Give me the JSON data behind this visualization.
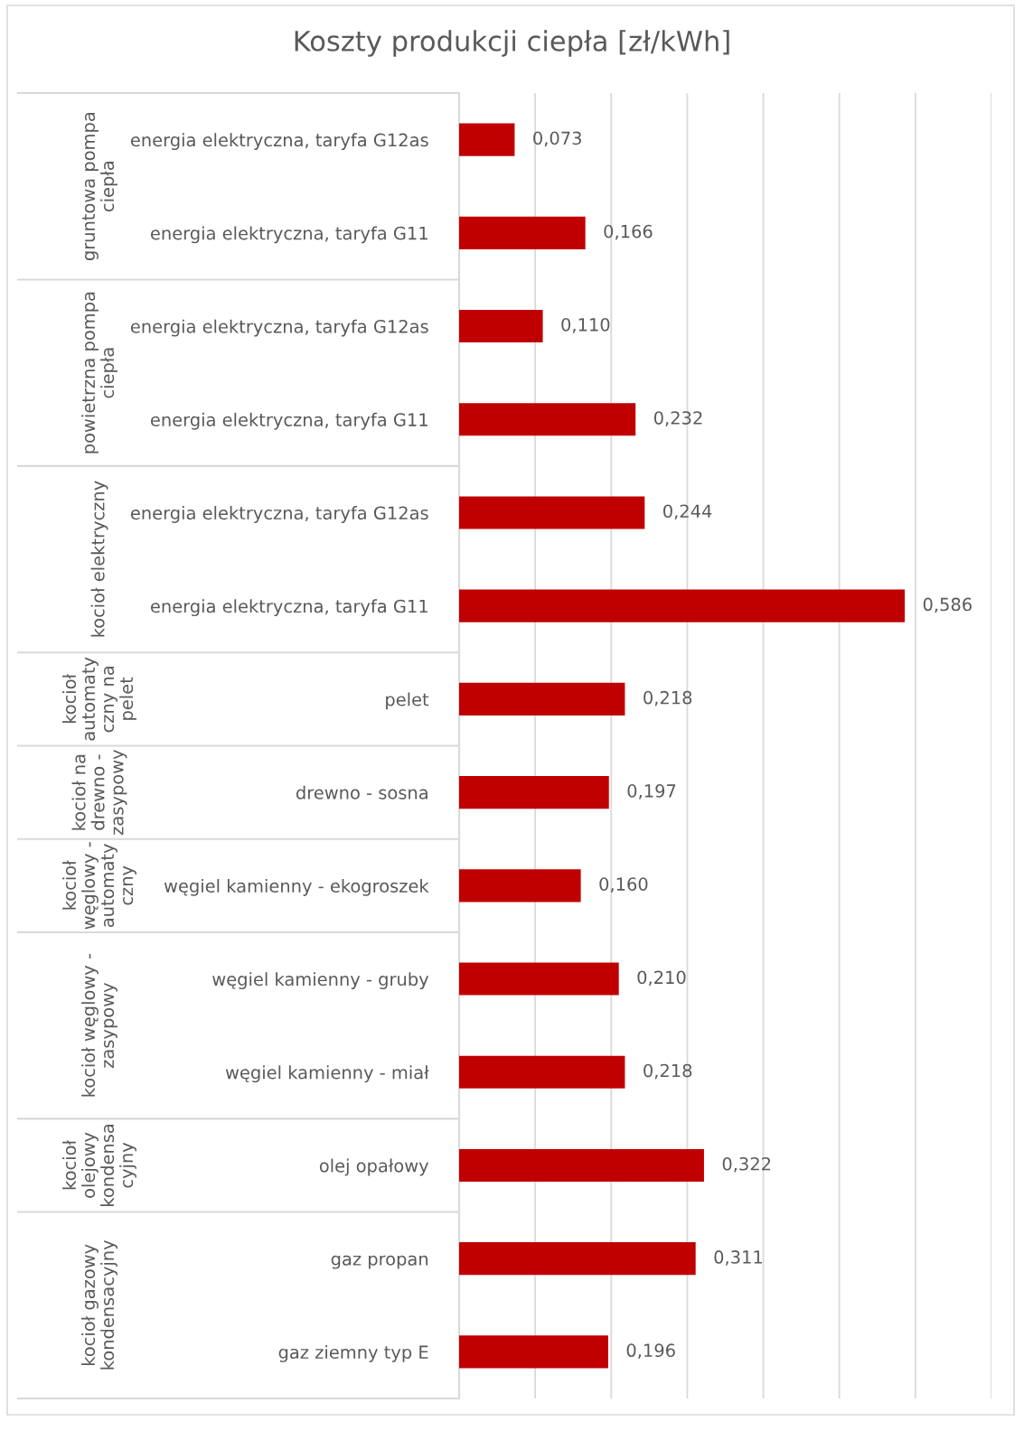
{
  "chart_data": {
    "type": "bar",
    "orientation": "horizontal",
    "title": "Koszty produkcji ciepła [zł/kWh]",
    "categories": [
      "energia elektryczna, taryfa G12as",
      "energia elektryczna, taryfa G11",
      "energia elektryczna, taryfa G12as",
      "energia elektryczna, taryfa G11",
      "energia elektryczna, taryfa G12as",
      "energia elektryczna, taryfa G11",
      "pelet",
      "drewno - sosna",
      "węgiel kamienny - ekogroszek",
      "węgiel kamienny - gruby",
      "węgiel kamienny - miał",
      "olej opałowy",
      "gaz propan",
      "gaz ziemny typ E"
    ],
    "values": [
      0.073,
      0.166,
      0.11,
      0.232,
      0.244,
      0.586,
      0.218,
      0.197,
      0.16,
      0.21,
      0.218,
      0.322,
      0.311,
      0.196
    ],
    "value_labels": [
      "0,073",
      "0,166",
      "0,110",
      "0,232",
      "0,244",
      "0,586",
      "0,218",
      "0,197",
      "0,160",
      "0,210",
      "0,218",
      "0,322",
      "0,311",
      "0,196"
    ],
    "color": "#c00000",
    "xlim": [
      0,
      0.7
    ],
    "xticks": [
      {
        "value": 0,
        "label": null
      },
      {
        "value": 0.1,
        "label": null
      },
      {
        "value": 0.2,
        "label": null
      },
      {
        "value": 0.3,
        "label": null
      },
      {
        "value": 0.4,
        "label": null
      },
      {
        "value": 0.5,
        "label": null
      },
      {
        "value": 0.6,
        "label": null
      },
      {
        "value": 0.7,
        "label": null
      }
    ],
    "grid": "x",
    "tick_labels": "y",
    "annotations": [
      "gruntowa pompa\nciepła",
      "powietrzna pompa\nciepła",
      "kocioł elektryczny",
      "kocioł\nautomaty\nczny na\npelet",
      "kocioł na\ndrewno -\nzasypowy",
      "kocioł\nwęglowy -\nautomaty\nczny",
      "kocioł węglowy -\nzasypowy",
      "kocioł\nolejowy\nkondensa\ncyjny",
      "kocioł gazowy\nkondensacyjny"
    ]
  }
}
